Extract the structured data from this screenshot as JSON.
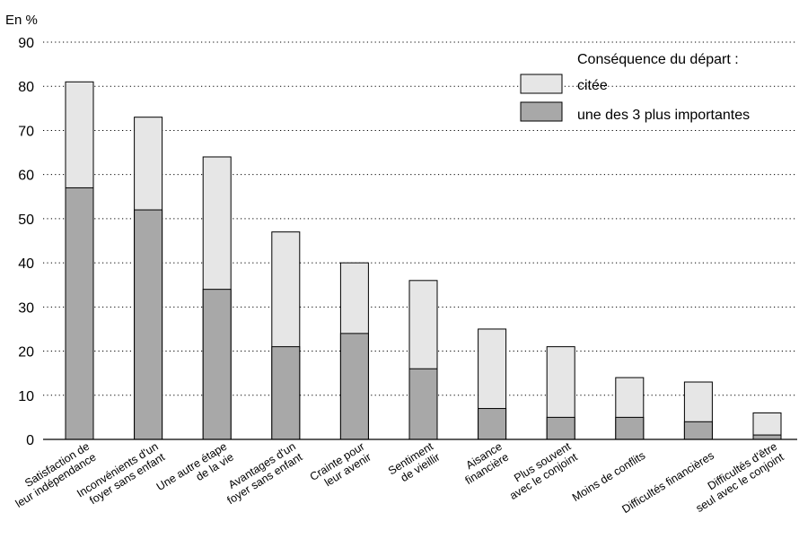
{
  "chart_data": {
    "type": "bar",
    "stacked": false,
    "ylabel": "En %",
    "ylim": [
      0,
      90
    ],
    "yticks": [
      0,
      10,
      20,
      30,
      40,
      50,
      60,
      70,
      80,
      90
    ],
    "grid": true,
    "legend_position": "top-right",
    "legend_title": "Conséquence du départ :",
    "categories": [
      [
        "Satisfaction de",
        "leur indépendance"
      ],
      [
        "Inconvénients d'un",
        "foyer sans enfant"
      ],
      [
        "Une autre étape",
        "de la vie"
      ],
      [
        "Avantages d'un",
        "foyer sans enfant"
      ],
      [
        "Crainte pour",
        "leur avenir"
      ],
      [
        "Sentiment",
        "de vieillir"
      ],
      [
        "Aisance",
        "financière"
      ],
      [
        "Plus souvent",
        "avec le conjoint"
      ],
      [
        "Moins de conflits"
      ],
      [
        "Difficultés financières"
      ],
      [
        "Difficultés d'être",
        "seul avec le conjoint"
      ]
    ],
    "series": [
      {
        "name": "citée",
        "color": "#e6e6e6",
        "values": [
          81,
          73,
          64,
          47,
          40,
          36,
          25,
          21,
          14,
          13,
          6
        ]
      },
      {
        "name": "une des 3 plus importantes",
        "color": "#a8a8a8",
        "values": [
          57,
          52,
          34,
          21,
          24,
          16,
          7,
          5,
          5,
          4,
          1
        ]
      }
    ]
  }
}
